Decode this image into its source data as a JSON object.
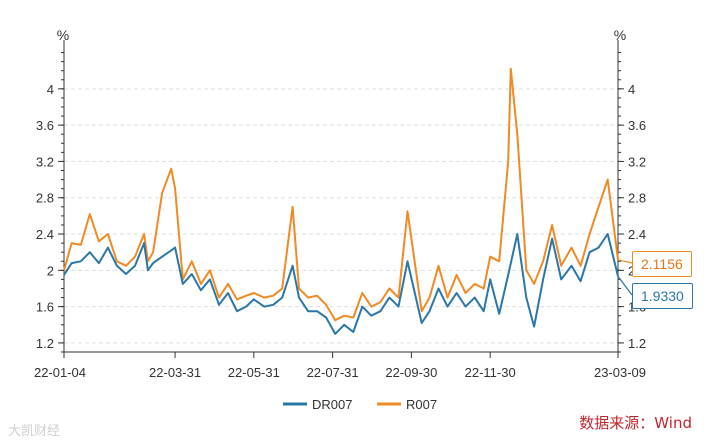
{
  "chart_data": {
    "type": "line",
    "y_unit_left": "%",
    "y_unit_right": "%",
    "ylim": [
      1.1,
      4.45
    ],
    "y_ticks": [
      1.2,
      1.6,
      2,
      2.4,
      2.8,
      3.2,
      3.6,
      4
    ],
    "y_tick_labels": [
      "1.2",
      "1.6",
      "2",
      "2.4",
      "2.8",
      "3.2",
      "3.6",
      "4"
    ],
    "x_range": [
      "2022-01-04",
      "2023-03-09"
    ],
    "x_ticks": [
      "2022-01-04",
      "2022-03-31",
      "2022-05-31",
      "2022-07-31",
      "2022-09-30",
      "2022-11-30",
      "2023-03-09"
    ],
    "x_tick_labels": [
      "22-01-04",
      "22-03-31",
      "22-05-31",
      "22-07-31",
      "22-09-30",
      "22-11-30",
      "23-03-09"
    ],
    "grid": "horizontal dashed",
    "legend_position": "bottom-center",
    "series": [
      {
        "name": "DR007",
        "color": "#2a77a8",
        "points": [
          [
            "2022-01-04",
            1.95
          ],
          [
            "2022-01-10",
            2.08
          ],
          [
            "2022-01-17",
            2.1
          ],
          [
            "2022-01-24",
            2.2
          ],
          [
            "2022-01-31",
            2.08
          ],
          [
            "2022-02-07",
            2.25
          ],
          [
            "2022-02-14",
            2.05
          ],
          [
            "2022-02-21",
            1.96
          ],
          [
            "2022-02-28",
            2.05
          ],
          [
            "2022-03-07",
            2.3
          ],
          [
            "2022-03-10",
            2.0
          ],
          [
            "2022-03-14",
            2.08
          ],
          [
            "2022-03-21",
            2.15
          ],
          [
            "2022-03-28",
            2.22
          ],
          [
            "2022-03-31",
            2.25
          ],
          [
            "2022-04-06",
            1.85
          ],
          [
            "2022-04-13",
            1.96
          ],
          [
            "2022-04-20",
            1.78
          ],
          [
            "2022-04-27",
            1.9
          ],
          [
            "2022-05-04",
            1.62
          ],
          [
            "2022-05-11",
            1.75
          ],
          [
            "2022-05-18",
            1.55
          ],
          [
            "2022-05-25",
            1.6
          ],
          [
            "2022-05-31",
            1.68
          ],
          [
            "2022-06-08",
            1.6
          ],
          [
            "2022-06-15",
            1.62
          ],
          [
            "2022-06-22",
            1.7
          ],
          [
            "2022-06-30",
            2.05
          ],
          [
            "2022-07-05",
            1.7
          ],
          [
            "2022-07-12",
            1.55
          ],
          [
            "2022-07-19",
            1.55
          ],
          [
            "2022-07-26",
            1.48
          ],
          [
            "2022-08-02",
            1.3
          ],
          [
            "2022-08-09",
            1.4
          ],
          [
            "2022-08-16",
            1.32
          ],
          [
            "2022-08-23",
            1.6
          ],
          [
            "2022-08-30",
            1.5
          ],
          [
            "2022-09-06",
            1.55
          ],
          [
            "2022-09-13",
            1.7
          ],
          [
            "2022-09-20",
            1.6
          ],
          [
            "2022-09-27",
            2.1
          ],
          [
            "2022-10-08",
            1.42
          ],
          [
            "2022-10-14",
            1.55
          ],
          [
            "2022-10-21",
            1.8
          ],
          [
            "2022-10-28",
            1.6
          ],
          [
            "2022-11-04",
            1.75
          ],
          [
            "2022-11-11",
            1.6
          ],
          [
            "2022-11-18",
            1.7
          ],
          [
            "2022-11-25",
            1.55
          ],
          [
            "2022-11-30",
            1.9
          ],
          [
            "2022-12-07",
            1.52
          ],
          [
            "2022-12-14",
            1.95
          ],
          [
            "2022-12-21",
            2.4
          ],
          [
            "2022-12-28",
            1.7
          ],
          [
            "2023-01-03",
            1.38
          ],
          [
            "2023-01-10",
            1.9
          ],
          [
            "2023-01-17",
            2.35
          ],
          [
            "2023-01-24",
            1.9
          ],
          [
            "2023-02-01",
            2.05
          ],
          [
            "2023-02-08",
            1.88
          ],
          [
            "2023-02-15",
            2.2
          ],
          [
            "2023-02-22",
            2.25
          ],
          [
            "2023-03-01",
            2.4
          ],
          [
            "2023-03-09",
            1.933
          ]
        ]
      },
      {
        "name": "R007",
        "color": "#f08a24",
        "points": [
          [
            "2022-01-04",
            2.0
          ],
          [
            "2022-01-10",
            2.3
          ],
          [
            "2022-01-17",
            2.28
          ],
          [
            "2022-01-24",
            2.62
          ],
          [
            "2022-01-31",
            2.32
          ],
          [
            "2022-02-07",
            2.4
          ],
          [
            "2022-02-14",
            2.1
          ],
          [
            "2022-02-21",
            2.05
          ],
          [
            "2022-02-28",
            2.15
          ],
          [
            "2022-03-07",
            2.4
          ],
          [
            "2022-03-10",
            2.1
          ],
          [
            "2022-03-14",
            2.2
          ],
          [
            "2022-03-21",
            2.85
          ],
          [
            "2022-03-28",
            3.12
          ],
          [
            "2022-03-31",
            2.9
          ],
          [
            "2022-04-06",
            1.9
          ],
          [
            "2022-04-13",
            2.1
          ],
          [
            "2022-04-20",
            1.85
          ],
          [
            "2022-04-27",
            2.0
          ],
          [
            "2022-05-04",
            1.7
          ],
          [
            "2022-05-11",
            1.85
          ],
          [
            "2022-05-18",
            1.68
          ],
          [
            "2022-05-25",
            1.72
          ],
          [
            "2022-05-31",
            1.75
          ],
          [
            "2022-06-08",
            1.7
          ],
          [
            "2022-06-15",
            1.72
          ],
          [
            "2022-06-22",
            1.8
          ],
          [
            "2022-06-30",
            2.7
          ],
          [
            "2022-07-05",
            1.8
          ],
          [
            "2022-07-12",
            1.7
          ],
          [
            "2022-07-19",
            1.72
          ],
          [
            "2022-07-26",
            1.62
          ],
          [
            "2022-08-02",
            1.45
          ],
          [
            "2022-08-09",
            1.5
          ],
          [
            "2022-08-16",
            1.48
          ],
          [
            "2022-08-23",
            1.75
          ],
          [
            "2022-08-30",
            1.6
          ],
          [
            "2022-09-06",
            1.65
          ],
          [
            "2022-09-13",
            1.8
          ],
          [
            "2022-09-20",
            1.7
          ],
          [
            "2022-09-27",
            2.65
          ],
          [
            "2022-10-08",
            1.55
          ],
          [
            "2022-10-14",
            1.7
          ],
          [
            "2022-10-21",
            2.05
          ],
          [
            "2022-10-28",
            1.7
          ],
          [
            "2022-11-04",
            1.95
          ],
          [
            "2022-11-11",
            1.75
          ],
          [
            "2022-11-18",
            1.85
          ],
          [
            "2022-11-25",
            1.8
          ],
          [
            "2022-11-30",
            2.15
          ],
          [
            "2022-12-07",
            2.1
          ],
          [
            "2022-12-14",
            3.2
          ],
          [
            "2022-12-16",
            4.22
          ],
          [
            "2022-12-21",
            3.5
          ],
          [
            "2022-12-28",
            2.0
          ],
          [
            "2023-01-03",
            1.85
          ],
          [
            "2023-01-10",
            2.1
          ],
          [
            "2023-01-17",
            2.5
          ],
          [
            "2023-01-24",
            2.05
          ],
          [
            "2023-02-01",
            2.25
          ],
          [
            "2023-02-08",
            2.05
          ],
          [
            "2023-02-15",
            2.4
          ],
          [
            "2023-02-22",
            2.7
          ],
          [
            "2023-03-01",
            3.0
          ],
          [
            "2023-03-09",
            2.1156
          ]
        ]
      }
    ],
    "end_labels": [
      {
        "series": "R007",
        "text": "2.1156"
      },
      {
        "series": "DR007",
        "text": "1.9330"
      }
    ]
  },
  "source_text": "数据来源：Wind",
  "watermark_text": "大凯财经"
}
